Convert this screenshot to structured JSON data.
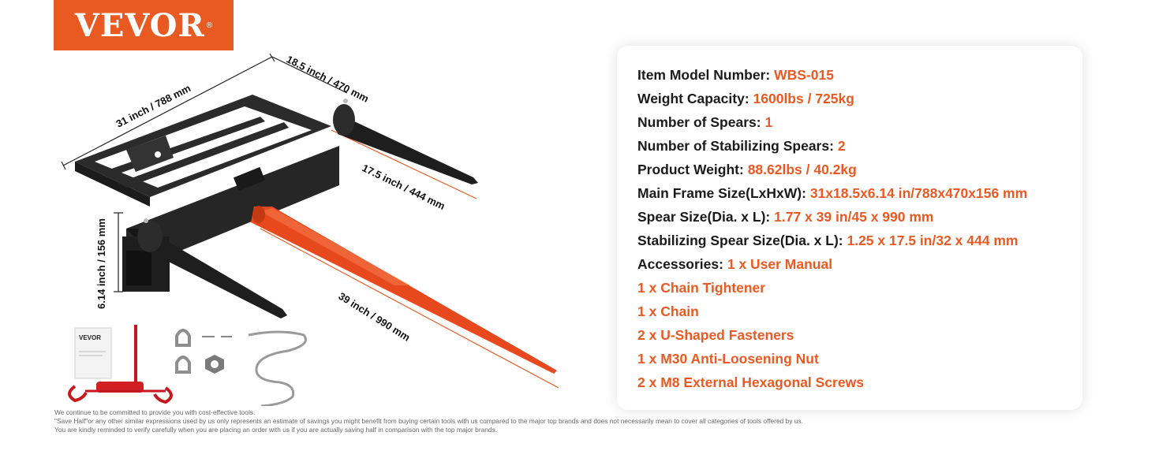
{
  "brand": {
    "name": "VEVOR",
    "mark": "®",
    "color": "#e95a23"
  },
  "dimensions": {
    "frame_length": "31 inch / 788 mm",
    "frame_width": "18.5 inch / 470 mm",
    "frame_height": "6.14 inch / 156 mm",
    "stabilizer_length": "17.5 inch / 444 mm",
    "spear_length": "39 inch / 990 mm"
  },
  "manual_brand": "VEVOR",
  "specs": [
    {
      "label": "Item Model Number:",
      "value": "WBS-015"
    },
    {
      "label": "Weight Capacity:",
      "value": "1600lbs / 725kg"
    },
    {
      "label": "Number of Spears:",
      "value": "1"
    },
    {
      "label": "Number of Stabilizing Spears:",
      "value": "2"
    },
    {
      "label": "Product Weight:",
      "value": "88.62lbs / 40.2kg"
    },
    {
      "label": "Main Frame Size(LxHxW):",
      "value": "31x18.5x6.14 in/788x470x156 mm"
    },
    {
      "label": "Spear Size(Dia. x L):",
      "value": "1.77 x 39 in/45 x 990 mm"
    },
    {
      "label": "Stabilizing Spear Size(Dia. x L):",
      "value": "1.25 x 17.5 in/32 x 444 mm"
    },
    {
      "label": "Accessories:",
      "value": "1 x User Manual"
    }
  ],
  "accessories": [
    "1 x Chain Tightener",
    "1 x Chain",
    "2 x U-Shaped Fasteners",
    "1 x M30 Anti-Loosening Nut",
    "2 x M8 External Hexagonal Screws"
  ],
  "disclaimer": [
    "We continue to be committed to provide you with cost-effective tools.",
    "\"Save Half\"or any other similar expressions used by us only represents an estimate of savings you might benefit from buying certain tools with us compared to the major top brands and does not necessarily mean to cover all categories of tools offered by us.",
    "You are kindly reminded to verify carefully when you are placing an order with us if you are actually saving half in comparison with the top major brands."
  ]
}
